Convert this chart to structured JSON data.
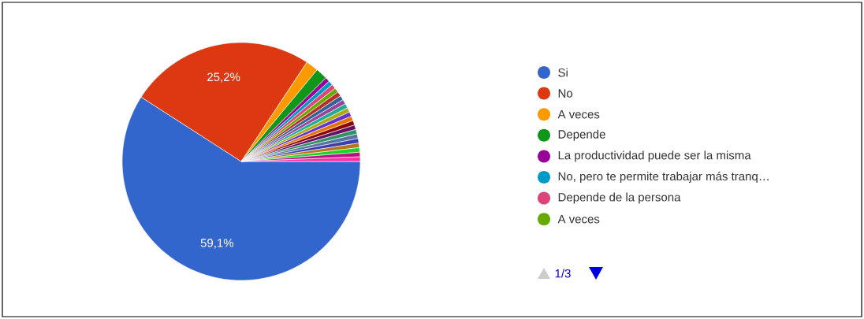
{
  "chart_data": {
    "type": "pie",
    "categories": [
      "Si",
      "No",
      "A veces",
      "Depende",
      "La productividad puede ser la misma",
      "No, pero te permite trabajar más tranq…",
      "Depende de la persona",
      "A veces",
      null,
      null,
      null,
      null,
      null,
      null,
      null,
      null,
      null,
      null,
      null,
      null,
      null,
      null,
      null,
      null
    ],
    "values": [
      59.1,
      25.2,
      1.7,
      1.6,
      0.62,
      0.62,
      0.62,
      0.62,
      0.62,
      0.62,
      0.62,
      0.62,
      0.62,
      0.62,
      0.62,
      0.62,
      0.62,
      0.62,
      0.62,
      0.62,
      0.62,
      0.62,
      0.62,
      0.62
    ],
    "colors": [
      "#3366cc",
      "#dc3912",
      "#ff9900",
      "#109618",
      "#990099",
      "#0099c6",
      "#dd4477",
      "#66aa00",
      "#b82e2e",
      "#316395",
      "#994499",
      "#22aa99",
      "#aaaa11",
      "#6633cc",
      "#e67300",
      "#8b0707",
      "#651067",
      "#329262",
      "#5574a6",
      "#3b3eac",
      "#b77322",
      "#16d620",
      "#b91383",
      "#f4359e"
    ],
    "value_labels": [
      "59,1%",
      "25,2%",
      null,
      null,
      null,
      null,
      null,
      null,
      null,
      null,
      null,
      null,
      null,
      null,
      null,
      null,
      null,
      null,
      null,
      null,
      null,
      null,
      null,
      null
    ],
    "legend": "right",
    "annotations": [
      "1/3"
    ]
  }
}
